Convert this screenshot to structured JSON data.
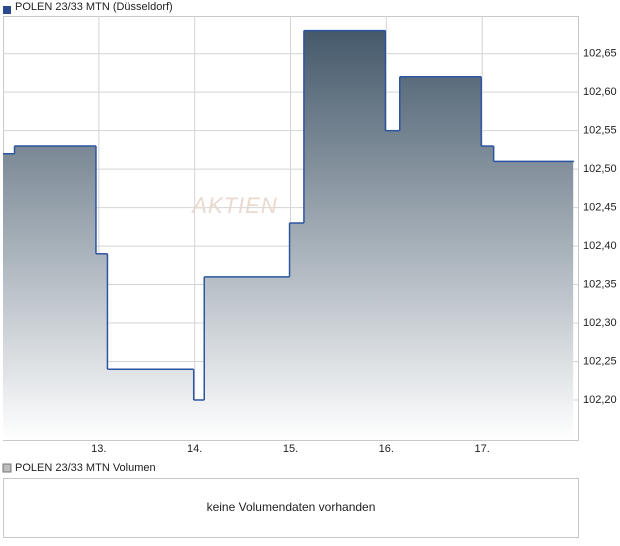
{
  "chart_data": {
    "type": "step",
    "legend": "POLEN 23/33 MTN (Düsseldorf)",
    "watermark": "AKTIEN",
    "series": [
      {
        "name": "POLEN 23/33 MTN (Düsseldorf)",
        "color": "#2c55a0",
        "x": [
          12.0,
          12.12,
          12.97,
          13.09,
          13.99,
          14.1,
          14.99,
          15.14,
          15.99,
          16.14,
          16.99,
          17.12,
          17.95
        ],
        "values": [
          102.52,
          102.53,
          102.39,
          102.24,
          102.2,
          102.36,
          102.43,
          102.68,
          102.55,
          102.62,
          102.53,
          102.51,
          102.51
        ]
      }
    ],
    "xlim": [
      12,
      18
    ],
    "xticks": [
      {
        "value": 13,
        "label": "13."
      },
      {
        "value": 14,
        "label": "14."
      },
      {
        "value": 15,
        "label": "15."
      },
      {
        "value": 16,
        "label": "16."
      },
      {
        "value": 17,
        "label": "17."
      }
    ],
    "ylim": [
      102.148,
      102.699
    ],
    "yticks": [
      {
        "value": 102.2,
        "label": "102,20"
      },
      {
        "value": 102.25,
        "label": "102,25"
      },
      {
        "value": 102.3,
        "label": "102,30"
      },
      {
        "value": 102.35,
        "label": "102,35"
      },
      {
        "value": 102.4,
        "label": "102,40"
      },
      {
        "value": 102.45,
        "label": "102,45"
      },
      {
        "value": 102.5,
        "label": "102,50"
      },
      {
        "value": 102.55,
        "label": "102,55"
      },
      {
        "value": 102.6,
        "label": "102,60"
      },
      {
        "value": 102.65,
        "label": "102,65"
      }
    ],
    "grid": true,
    "volume": {
      "legend": "POLEN 23/33 MTN Volumen",
      "message": "keine Volumendaten vorhanden"
    }
  }
}
